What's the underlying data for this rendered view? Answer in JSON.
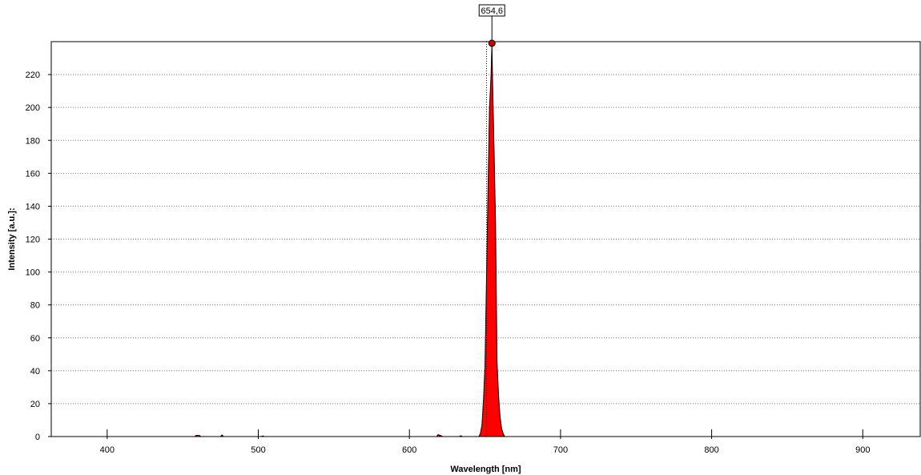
{
  "chart_data": {
    "type": "area",
    "xlabel": "Wavelength [nm]",
    "ylabel": "Intensity [a.u.]:",
    "xlim": [
      363,
      938
    ],
    "ylim": [
      0,
      240
    ],
    "x_ticks": [
      400,
      500,
      600,
      700,
      800,
      900
    ],
    "y_ticks": [
      0,
      20,
      40,
      60,
      80,
      100,
      120,
      140,
      160,
      180,
      200,
      220
    ],
    "grid": "horizontal dotted",
    "fill_color": "#ff0000",
    "series": [
      {
        "x": [
          458,
          459,
          460,
          461,
          462,
          475,
          476,
          477,
          502,
          503,
          504,
          618,
          619,
          620,
          621,
          622,
          633,
          634,
          635,
          646,
          647,
          648,
          649,
          650,
          651,
          652,
          653,
          654,
          654.6,
          655,
          656,
          657,
          658,
          659,
          660,
          661,
          662,
          663
        ],
        "y": [
          0,
          0.8,
          0.6,
          0.7,
          0,
          0,
          1,
          0,
          0,
          0.4,
          0,
          0,
          1.2,
          0.8,
          0.5,
          0,
          0,
          0.5,
          0,
          0,
          2,
          7,
          22,
          43,
          95,
          150,
          200,
          219,
          239,
          218,
          175,
          130,
          45,
          25,
          12,
          5,
          2,
          0
        ]
      }
    ],
    "peak_marker": {
      "x": 654.6,
      "y": 239,
      "label": "654,6"
    },
    "reference_line_x": 651
  }
}
